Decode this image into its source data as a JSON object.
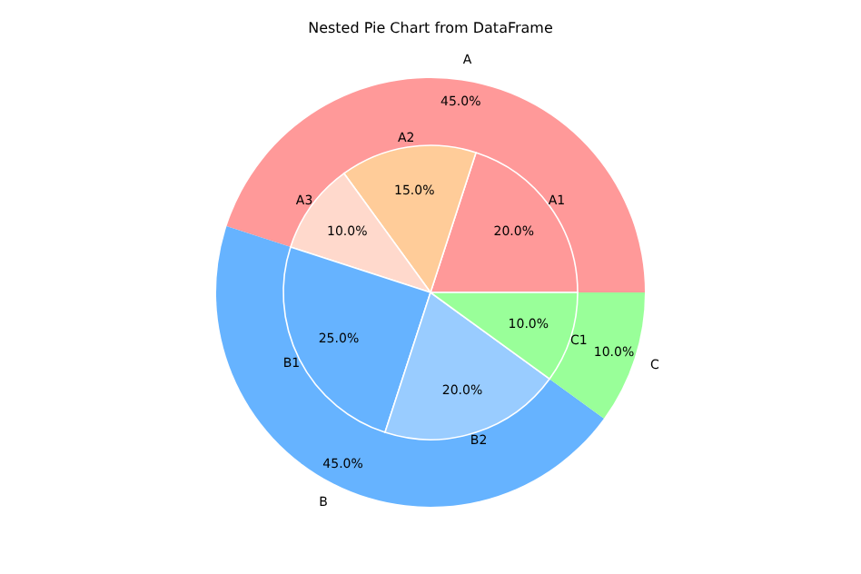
{
  "chart_data": [
    {
      "type": "pie",
      "title": "Nested Pie Chart from DataFrame",
      "categories": [
        "A",
        "B",
        "C"
      ],
      "values": [
        45,
        45,
        10
      ],
      "value_labels": [
        "45.0%",
        "45.0%",
        "10.0%"
      ],
      "colors": [
        "#ff9999",
        "#66b3ff",
        "#99ff99"
      ],
      "legend": false
    },
    {
      "type": "pie",
      "categories": [
        "A1",
        "A2",
        "A3",
        "B1",
        "B2",
        "C1"
      ],
      "values": [
        20,
        15,
        10,
        25,
        20,
        10
      ],
      "value_labels": [
        "20.0%",
        "15.0%",
        "10.0%",
        "25.0%",
        "20.0%",
        "10.0%"
      ],
      "colors": [
        "#ff9999",
        "#ffcc99",
        "#ffd9cc",
        "#66b3ff",
        "#99ccff",
        "#99ff99"
      ],
      "legend": false
    }
  ]
}
